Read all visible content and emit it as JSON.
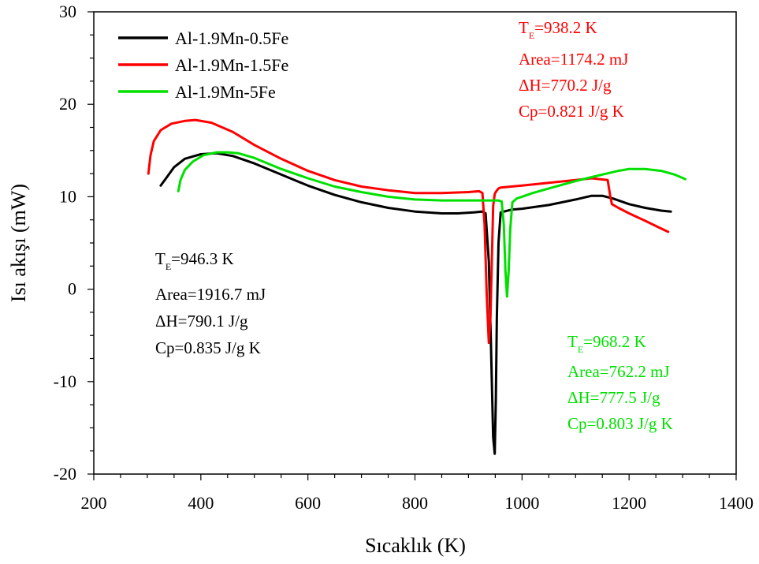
{
  "chart_data": {
    "type": "line",
    "xlabel": "Sıcaklık (K)",
    "ylabel": "Isı akışı (mW)",
    "xlim": [
      200,
      1400
    ],
    "ylim": [
      -20,
      30
    ],
    "xticks": [
      "200",
      "400",
      "600",
      "800",
      "1000",
      "1200",
      "1400"
    ],
    "yticks": [
      "-20",
      "-10",
      "0",
      "10",
      "20",
      "30"
    ],
    "grid": false,
    "legend_position": "top-left",
    "series": [
      {
        "name": "Al-1.9Mn-0.5Fe",
        "color": "#000000",
        "x": [
          325,
          335,
          350,
          370,
          400,
          430,
          460,
          500,
          550,
          600,
          650,
          700,
          750,
          800,
          850,
          880,
          910,
          925,
          932,
          938,
          942,
          946,
          949,
          951,
          953,
          956,
          960,
          980,
          1000,
          1050,
          1100,
          1130,
          1150,
          1170,
          1200,
          1230,
          1260,
          1278
        ],
        "y": [
          11.2,
          12.0,
          13.2,
          14.1,
          14.6,
          14.7,
          14.4,
          13.6,
          12.4,
          11.2,
          10.2,
          9.4,
          8.8,
          8.4,
          8.2,
          8.2,
          8.3,
          8.4,
          8.2,
          3.0,
          -6.0,
          -16.0,
          -17.8,
          -12.0,
          -3.0,
          5.0,
          8.3,
          8.6,
          8.7,
          9.1,
          9.7,
          10.1,
          10.1,
          9.8,
          9.2,
          8.8,
          8.5,
          8.4
        ]
      },
      {
        "name": "Al-1.9Mn-1.5Fe",
        "color": "#ff0000",
        "x": [
          302,
          306,
          312,
          325,
          345,
          370,
          390,
          420,
          460,
          500,
          550,
          600,
          650,
          700,
          750,
          800,
          850,
          900,
          920,
          926,
          930,
          934,
          938,
          941,
          944,
          946,
          949,
          952,
          956,
          960,
          980,
          1000,
          1050,
          1100,
          1130,
          1160,
          1165,
          1168,
          1180,
          1200,
          1230,
          1255,
          1273
        ],
        "y": [
          12.5,
          14.5,
          16.0,
          17.2,
          17.9,
          18.2,
          18.3,
          18.0,
          17.0,
          15.6,
          14.1,
          12.8,
          11.8,
          11.1,
          10.7,
          10.4,
          10.4,
          10.5,
          10.6,
          10.4,
          7.0,
          -0.5,
          -5.8,
          -3.0,
          4.0,
          9.0,
          10.3,
          10.6,
          10.9,
          11.0,
          11.1,
          11.2,
          11.5,
          11.8,
          12.0,
          11.8,
          10.0,
          9.2,
          8.8,
          8.2,
          7.4,
          6.7,
          6.2
        ]
      },
      {
        "name": "Al-1.9Mn-5Fe",
        "color": "#00e000",
        "x": [
          358,
          362,
          370,
          385,
          405,
          430,
          450,
          470,
          500,
          550,
          600,
          650,
          700,
          750,
          800,
          850,
          900,
          940,
          955,
          962,
          966,
          969,
          972,
          975,
          978,
          982,
          990,
          1000,
          1020,
          1050,
          1100,
          1150,
          1180,
          1200,
          1230,
          1260,
          1285,
          1305
        ],
        "y": [
          10.6,
          11.8,
          12.9,
          13.8,
          14.5,
          14.8,
          14.8,
          14.7,
          14.2,
          13.0,
          12.0,
          11.1,
          10.5,
          10.0,
          9.7,
          9.6,
          9.6,
          9.6,
          9.6,
          9.5,
          7.0,
          2.0,
          -0.8,
          2.0,
          6.5,
          9.4,
          9.8,
          10.0,
          10.4,
          10.9,
          11.7,
          12.4,
          12.8,
          13.0,
          13.0,
          12.8,
          12.4,
          11.9
        ]
      }
    ],
    "annotations": [
      {
        "color": "#000000",
        "position": "left-middle",
        "te_label": "T",
        "te_sub": "E",
        "te_value": "=946.3 K",
        "lines": [
          "Area=1916.7 mJ",
          "ΔH=790.1 J/g",
          "Cp=0.835 J/g K"
        ]
      },
      {
        "color": "#ff0000",
        "position": "top-right",
        "te_label": "T",
        "te_sub": "E",
        "te_value": "=938.2 K",
        "lines": [
          "Area=1174.2 mJ",
          "ΔH=770.2 J/g",
          "Cp=0.821 J/g K"
        ]
      },
      {
        "color": "#00e000",
        "position": "right-lower",
        "te_label": "T",
        "te_sub": "E",
        "te_value": "=968.2 K",
        "lines": [
          "Area=762.2 mJ",
          "ΔH=777.5 J/g",
          "Cp=0.803 J/g K"
        ]
      }
    ]
  }
}
